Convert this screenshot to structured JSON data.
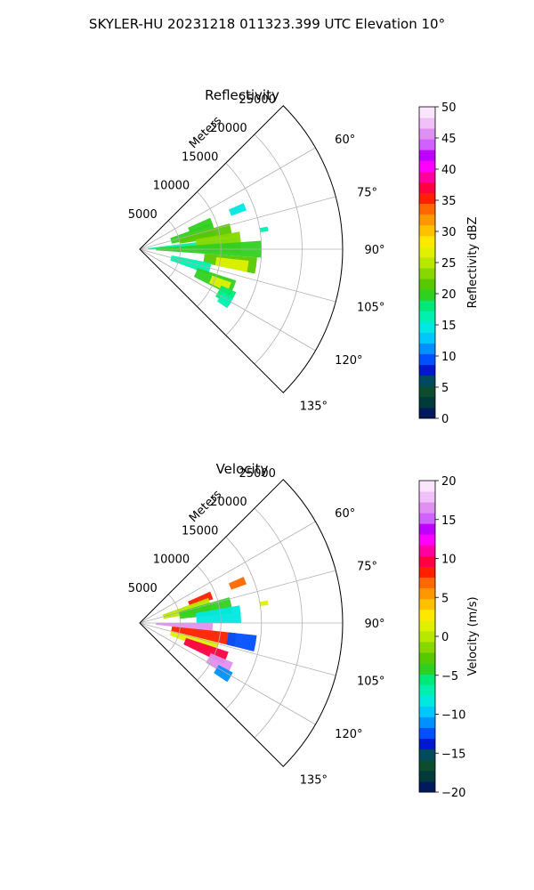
{
  "suptitle": "SKYLER-HU  20231218  011323.399 UTC Elevation 10°",
  "chart_data": [
    {
      "type": "polar-sector",
      "title": "Reflectivity",
      "radial_label": "Meters",
      "radial_ticks": [
        5000,
        10000,
        15000,
        20000,
        25000
      ],
      "radial_tick_labels": [
        "5000",
        "10000",
        "15000",
        "20000",
        "25000"
      ],
      "r_max": 25000,
      "theta_range_deg": [
        45,
        135
      ],
      "theta_ticks": [
        60,
        75,
        90,
        105,
        120,
        135
      ],
      "theta_tick_labels": [
        "60°",
        "75°",
        "90°",
        "105°",
        "120°",
        "135°"
      ],
      "grid": true,
      "colorbar": {
        "label": "Reflectivity dBZ",
        "range": [
          0,
          50
        ],
        "ticks": [
          0,
          5,
          10,
          15,
          20,
          25,
          30,
          35,
          40,
          45,
          50
        ],
        "tick_labels": [
          "0",
          "5",
          "10",
          "15",
          "20",
          "25",
          "30",
          "35",
          "40",
          "45",
          "50"
        ],
        "colors": [
          "#001a5c",
          "#003a3a",
          "#0b4d2e",
          "#004a60",
          "#0018d0",
          "#0050ff",
          "#0090ff",
          "#00c8ff",
          "#00e8e0",
          "#00f0b0",
          "#00e878",
          "#30d020",
          "#58c800",
          "#88d800",
          "#b8e800",
          "#e0f000",
          "#ffe800",
          "#ffc000",
          "#ff9800",
          "#ff6800",
          "#ff2000",
          "#ff0040",
          "#ff00a0",
          "#ff00ff",
          "#c000ff",
          "#d060ff",
          "#e090f0",
          "#f0c0f8",
          "#fae6fc"
        ]
      },
      "echo_regions": [
        {
          "az": [
            83,
            90
          ],
          "r": [
            1000,
            12000
          ],
          "value": 16
        },
        {
          "az": [
            66,
            72
          ],
          "r": [
            6500,
            9500
          ],
          "value": 19
        },
        {
          "az": [
            70,
            80
          ],
          "r": [
            4000,
            9500
          ],
          "value": 19
        },
        {
          "az": [
            74,
            82
          ],
          "r": [
            5000,
            11500
          ],
          "value": 21
        },
        {
          "az": [
            80,
            92
          ],
          "r": [
            7000,
            12500
          ],
          "value": 23
        },
        {
          "az": [
            66,
            70
          ],
          "r": [
            12000,
            14000
          ],
          "value": 15
        },
        {
          "az": [
            80,
            82
          ],
          "r": [
            15000,
            16000
          ],
          "value": 17
        },
        {
          "az": [
            86,
            94
          ],
          "r": [
            2000,
            15000
          ],
          "value": 19
        },
        {
          "az": [
            94,
            102
          ],
          "r": [
            8000,
            14500
          ],
          "value": 21
        },
        {
          "az": [
            96,
            102
          ],
          "r": [
            9500,
            13500
          ],
          "value": 27
        },
        {
          "az": [
            101,
            110
          ],
          "r": [
            4000,
            9000
          ],
          "value": 17
        },
        {
          "az": [
            108,
            117
          ],
          "r": [
            7500,
            12500
          ],
          "value": 20
        },
        {
          "az": [
            110,
            116
          ],
          "r": [
            9500,
            12000
          ],
          "value": 26
        },
        {
          "az": [
            114,
            122
          ],
          "r": [
            11000,
            13000
          ],
          "value": 18
        },
        {
          "az": [
            118,
            124
          ],
          "r": [
            11500,
            13000
          ],
          "value": 16
        }
      ]
    },
    {
      "type": "polar-sector",
      "title": "Velocity",
      "radial_label": "Meters",
      "radial_ticks": [
        5000,
        10000,
        15000,
        20000,
        25000
      ],
      "radial_tick_labels": [
        "5000",
        "10000",
        "15000",
        "20000",
        "25000"
      ],
      "r_max": 25000,
      "theta_range_deg": [
        45,
        135
      ],
      "theta_ticks": [
        60,
        75,
        90,
        105,
        120,
        135
      ],
      "theta_tick_labels": [
        "60°",
        "75°",
        "90°",
        "105°",
        "120°",
        "135°"
      ],
      "grid": true,
      "colorbar": {
        "label": "Velocity (m/s)",
        "range": [
          -20,
          20
        ],
        "ticks": [
          -20,
          -15,
          -10,
          -5,
          0,
          5,
          10,
          15,
          20
        ],
        "tick_labels": [
          "−20",
          "−15",
          "−10",
          "−5",
          "0",
          "5",
          "10",
          "15",
          "20"
        ],
        "colors": [
          "#001a5c",
          "#003a3a",
          "#0b4d2e",
          "#004a60",
          "#0018d0",
          "#0050ff",
          "#0090ff",
          "#00c8ff",
          "#00e8e0",
          "#00f0b0",
          "#00e878",
          "#30d020",
          "#58c800",
          "#88d800",
          "#b8e800",
          "#e0f000",
          "#ffe800",
          "#ffc000",
          "#ff9800",
          "#ff6800",
          "#ff2000",
          "#ff0040",
          "#ff00a0",
          "#ff00ff",
          "#c000ff",
          "#d060ff",
          "#e090f0",
          "#f0c0f8",
          "#fae6fc"
        ]
      },
      "echo_regions": [
        {
          "az": [
            66,
            72
          ],
          "r": [
            6500,
            9500
          ],
          "value": 8
        },
        {
          "az": [
            70,
            80
          ],
          "r": [
            3000,
            9000
          ],
          "value": 0
        },
        {
          "az": [
            74,
            84
          ],
          "r": [
            5000,
            11500
          ],
          "value": -4
        },
        {
          "az": [
            80,
            90
          ],
          "r": [
            7000,
            12500
          ],
          "value": -8
        },
        {
          "az": [
            66,
            70
          ],
          "r": [
            12000,
            14000
          ],
          "value": 7
        },
        {
          "az": [
            80,
            82
          ],
          "r": [
            15000,
            16000
          ],
          "value": 1
        },
        {
          "az": [
            90,
            96
          ],
          "r": [
            2000,
            9000
          ],
          "value": 16
        },
        {
          "az": [
            96,
            104
          ],
          "r": [
            4000,
            12000
          ],
          "value": 8
        },
        {
          "az": [
            104,
            112
          ],
          "r": [
            4000,
            10000
          ],
          "value": 2
        },
        {
          "az": [
            108,
            116
          ],
          "r": [
            6000,
            11500
          ],
          "value": 10
        },
        {
          "az": [
            96,
            104
          ],
          "r": [
            11000,
            14500
          ],
          "value": -12
        },
        {
          "az": [
            113,
            121
          ],
          "r": [
            9500,
            12500
          ],
          "value": 16
        },
        {
          "az": [
            118,
            124
          ],
          "r": [
            11000,
            13000
          ],
          "value": -11
        }
      ]
    }
  ]
}
